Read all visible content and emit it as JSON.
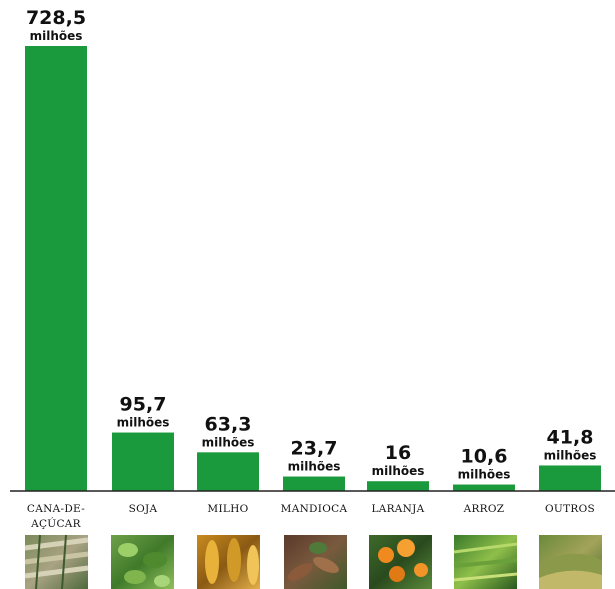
{
  "chart_data": {
    "type": "bar",
    "categories": [
      [
        "CANA-DE-",
        "AÇÚCAR"
      ],
      [
        "SOJA"
      ],
      [
        "MILHO"
      ],
      [
        "MANDIOCA"
      ],
      [
        "LARANJA"
      ],
      [
        "ARROZ"
      ],
      [
        "OUTROS"
      ]
    ],
    "values": [
      728.5,
      95.7,
      63.3,
      23.7,
      16,
      10.6,
      41.8
    ],
    "value_labels": [
      "728,5",
      "95,7",
      "63,3",
      "23,7",
      "16",
      "10,6",
      "41,8"
    ],
    "unit_label": "milhões",
    "ylim": [
      0,
      728.5
    ],
    "grid": false,
    "legend": "none"
  },
  "colors": {
    "bar": "#1a9a3c",
    "baseline": "#222222"
  },
  "crop_images": [
    "sugarcane-photo",
    "soybean-photo",
    "corn-photo",
    "cassava-photo",
    "orange-photo",
    "rice-photo",
    "other-crops-photo"
  ]
}
